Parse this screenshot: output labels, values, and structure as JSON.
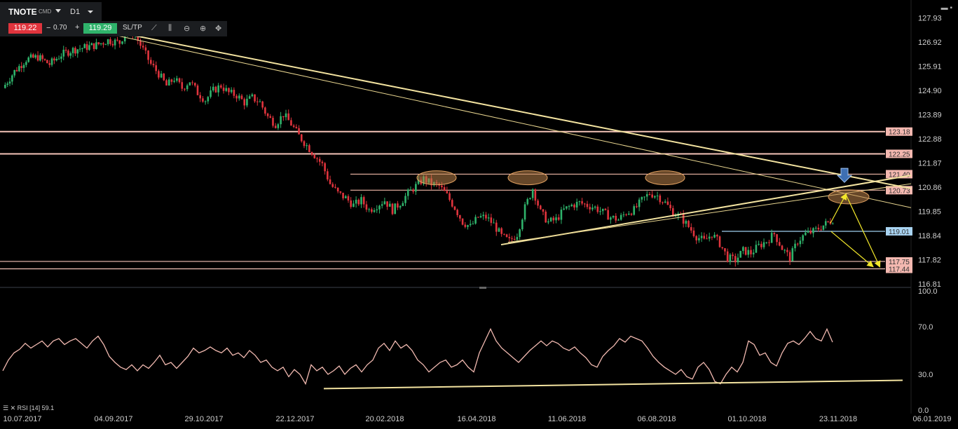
{
  "toolbar": {
    "symbol": "TNOTE",
    "instrument_type": "CMD",
    "timeframe": "D1",
    "bid": "119.22",
    "minus": "−",
    "spread": "0.70",
    "plus": "+",
    "ask": "119.29",
    "sltp": "SL/TP",
    "bid_color": "#e0343d",
    "ask_color": "#2fb36b"
  },
  "rsi_panel": {
    "label": "RSI [14] 59.1"
  },
  "chart_data": [
    {
      "type": "candlestick",
      "x_ticks": [
        "10.07.2017",
        "04.09.2017",
        "29.10.2017",
        "22.12.2017",
        "20.02.2018",
        "16.04.2018",
        "11.06.2018",
        "06.08.2018",
        "01.10.2018",
        "23.11.2018",
        "06.01.2019"
      ],
      "y_ticks": [
        127.93,
        126.92,
        125.91,
        124.9,
        123.89,
        122.88,
        121.87,
        120.86,
        119.85,
        118.84,
        117.82,
        116.81
      ],
      "ylim": [
        116.81,
        128.5
      ],
      "close_path": [
        [
          0,
          125.0
        ],
        [
          6,
          125.7
        ],
        [
          12,
          126.2
        ],
        [
          18,
          126.3
        ],
        [
          24,
          126.0
        ],
        [
          30,
          126.4
        ],
        [
          36,
          126.6
        ],
        [
          42,
          126.7
        ],
        [
          48,
          126.8
        ],
        [
          54,
          127.0
        ],
        [
          60,
          126.9
        ],
        [
          64,
          127.5
        ],
        [
          68,
          127.2
        ],
        [
          72,
          126.6
        ],
        [
          76,
          126.0
        ],
        [
          80,
          125.6
        ],
        [
          84,
          125.1
        ],
        [
          88,
          125.4
        ],
        [
          92,
          125.0
        ],
        [
          96,
          125.3
        ],
        [
          100,
          124.8
        ],
        [
          104,
          124.5
        ],
        [
          108,
          124.9
        ],
        [
          112,
          125.1
        ],
        [
          116,
          124.8
        ],
        [
          120,
          124.7
        ],
        [
          124,
          124.4
        ],
        [
          128,
          124.6
        ],
        [
          132,
          124.4
        ],
        [
          136,
          123.8
        ],
        [
          140,
          123.5
        ],
        [
          144,
          123.9
        ],
        [
          148,
          123.5
        ],
        [
          152,
          123.0
        ],
        [
          156,
          122.6
        ],
        [
          160,
          122.2
        ],
        [
          164,
          121.8
        ],
        [
          168,
          121.0
        ],
        [
          172,
          120.6
        ],
        [
          176,
          120.4
        ],
        [
          180,
          120.1
        ],
        [
          184,
          120.3
        ],
        [
          188,
          119.9
        ],
        [
          192,
          120.1
        ],
        [
          196,
          120.3
        ],
        [
          200,
          119.9
        ],
        [
          204,
          120.2
        ],
        [
          208,
          120.6
        ],
        [
          212,
          120.9
        ],
        [
          216,
          121.2
        ],
        [
          220,
          121.0
        ],
        [
          224,
          120.9
        ],
        [
          228,
          120.5
        ],
        [
          232,
          120.0
        ],
        [
          236,
          119.4
        ],
        [
          240,
          119.2
        ],
        [
          244,
          119.6
        ],
        [
          248,
          119.6
        ],
        [
          252,
          119.3
        ],
        [
          256,
          118.8
        ],
        [
          260,
          118.6
        ],
        [
          264,
          118.9
        ],
        [
          268,
          120.0
        ],
        [
          272,
          120.8
        ],
        [
          276,
          119.8
        ],
        [
          280,
          119.4
        ],
        [
          284,
          119.5
        ],
        [
          288,
          119.9
        ],
        [
          292,
          120.1
        ],
        [
          296,
          120.2
        ],
        [
          300,
          120.1
        ],
        [
          304,
          120.0
        ],
        [
          308,
          119.8
        ],
        [
          312,
          119.6
        ],
        [
          316,
          119.5
        ],
        [
          320,
          119.8
        ],
        [
          324,
          119.9
        ],
        [
          328,
          120.3
        ],
        [
          332,
          120.6
        ],
        [
          336,
          120.5
        ],
        [
          340,
          120.2
        ],
        [
          344,
          119.8
        ],
        [
          348,
          119.6
        ],
        [
          352,
          119.2
        ],
        [
          356,
          118.8
        ],
        [
          360,
          118.6
        ],
        [
          364,
          118.9
        ],
        [
          368,
          118.5
        ],
        [
          372,
          117.9
        ],
        [
          376,
          117.8
        ],
        [
          380,
          118.2
        ],
        [
          384,
          118.1
        ],
        [
          388,
          118.4
        ],
        [
          392,
          118.6
        ],
        [
          396,
          118.9
        ],
        [
          400,
          118.3
        ],
        [
          404,
          117.9
        ],
        [
          408,
          118.6
        ],
        [
          412,
          118.9
        ],
        [
          416,
          119.0
        ],
        [
          420,
          119.2
        ],
        [
          426,
          119.5
        ]
      ],
      "horizontal_levels": [
        {
          "price": "123.18",
          "value": 123.18,
          "line_color": "#f4c4b8",
          "label_color": "#f4b8b0"
        },
        {
          "price": "122.25",
          "value": 122.25,
          "line_color": "#f4c4b8",
          "label_color": "#f4b8b0"
        },
        {
          "price": "121.40",
          "value": 121.4,
          "line_color": "#f0b8a8",
          "label_color": "#f4b8b0"
        },
        {
          "price": "120.73",
          "value": 120.73,
          "line_color": "#f0b8a8",
          "label_color": "#f4b8b0"
        },
        {
          "price": "119.01",
          "value": 119.01,
          "line_color": "#9fd0f0",
          "label_color": "#a9d4f2"
        },
        {
          "price": "117.75",
          "value": 117.75,
          "line_color": "#f4c4b8",
          "label_color": "#f4b8b0"
        },
        {
          "price": "117.44",
          "value": 117.44,
          "line_color": "#f4c4b8",
          "label_color": "#f4b8b0"
        }
      ],
      "trendlines": [
        {
          "from": [
            0,
            128.3
          ],
          "to": [
            1300,
            120.8
          ],
          "color": "#f3e3a0"
        },
        {
          "from": [
            40,
            128.0
          ],
          "to": [
            1300,
            120.0
          ],
          "color": "#e9d690"
        },
        {
          "from": [
            715,
            118.45
          ],
          "to": [
            1300,
            121.35
          ],
          "color": "#f3e3a0"
        },
        {
          "from": [
            725,
            118.55
          ],
          "to": [
            1300,
            121.0
          ],
          "color": "#e9d690"
        }
      ],
      "ellipses": [
        {
          "cx": 623,
          "cy": 121.25
        },
        {
          "cx": 753,
          "cy": 121.25
        },
        {
          "cx": 949,
          "cy": 121.25
        },
        {
          "cx": 1211,
          "cy": 120.45
        }
      ],
      "colors": {
        "up": "#2fb36b",
        "down": "#e0343d",
        "ellipse": "#b9824a",
        "arrow": "#f2e72a"
      }
    },
    {
      "type": "line",
      "title": "RSI [14] 59.1",
      "y_ticks": [
        100.0,
        70.0,
        30.0,
        0.0
      ],
      "ylim": [
        0,
        100
      ],
      "values": [
        [
          0,
          33
        ],
        [
          4,
          42
        ],
        [
          8,
          48
        ],
        [
          12,
          51
        ],
        [
          16,
          56
        ],
        [
          20,
          52
        ],
        [
          24,
          55
        ],
        [
          28,
          58
        ],
        [
          32,
          53
        ],
        [
          36,
          58
        ],
        [
          40,
          60
        ],
        [
          44,
          55
        ],
        [
          48,
          58
        ],
        [
          52,
          60
        ],
        [
          56,
          56
        ],
        [
          60,
          52
        ],
        [
          64,
          58
        ],
        [
          68,
          62
        ],
        [
          72,
          55
        ],
        [
          76,
          45
        ],
        [
          80,
          40
        ],
        [
          84,
          36
        ],
        [
          88,
          34
        ],
        [
          92,
          38
        ],
        [
          96,
          33
        ],
        [
          100,
          38
        ],
        [
          104,
          35
        ],
        [
          108,
          40
        ],
        [
          112,
          46
        ],
        [
          116,
          38
        ],
        [
          120,
          40
        ],
        [
          124,
          35
        ],
        [
          128,
          40
        ],
        [
          132,
          45
        ],
        [
          136,
          52
        ],
        [
          140,
          48
        ],
        [
          144,
          50
        ],
        [
          148,
          53
        ],
        [
          152,
          50
        ],
        [
          156,
          48
        ],
        [
          160,
          52
        ],
        [
          164,
          46
        ],
        [
          168,
          48
        ],
        [
          172,
          44
        ],
        [
          176,
          50
        ],
        [
          180,
          46
        ],
        [
          184,
          40
        ],
        [
          188,
          42
        ],
        [
          192,
          36
        ],
        [
          196,
          33
        ],
        [
          200,
          36
        ],
        [
          204,
          28
        ],
        [
          208,
          34
        ],
        [
          212,
          30
        ],
        [
          216,
          22
        ],
        [
          220,
          38
        ],
        [
          224,
          33
        ],
        [
          228,
          36
        ],
        [
          232,
          30
        ],
        [
          236,
          33
        ],
        [
          240,
          37
        ],
        [
          244,
          30
        ],
        [
          248,
          35
        ],
        [
          252,
          38
        ],
        [
          256,
          32
        ],
        [
          260,
          38
        ],
        [
          264,
          42
        ],
        [
          268,
          52
        ],
        [
          272,
          56
        ],
        [
          276,
          50
        ],
        [
          280,
          58
        ],
        [
          284,
          52
        ],
        [
          288,
          55
        ],
        [
          292,
          50
        ],
        [
          296,
          42
        ],
        [
          300,
          38
        ],
        [
          304,
          32
        ],
        [
          308,
          36
        ],
        [
          312,
          40
        ],
        [
          316,
          42
        ],
        [
          320,
          36
        ],
        [
          324,
          38
        ],
        [
          328,
          42
        ],
        [
          332,
          36
        ],
        [
          336,
          32
        ],
        [
          340,
          48
        ],
        [
          344,
          58
        ],
        [
          348,
          68
        ],
        [
          352,
          58
        ],
        [
          356,
          52
        ],
        [
          360,
          48
        ],
        [
          364,
          44
        ],
        [
          368,
          40
        ],
        [
          372,
          45
        ],
        [
          376,
          50
        ],
        [
          380,
          54
        ],
        [
          384,
          58
        ],
        [
          388,
          54
        ],
        [
          392,
          58
        ],
        [
          396,
          56
        ],
        [
          400,
          52
        ],
        [
          404,
          50
        ],
        [
          408,
          53
        ],
        [
          412,
          48
        ],
        [
          416,
          44
        ],
        [
          420,
          38
        ],
        [
          424,
          36
        ],
        [
          428,
          45
        ],
        [
          432,
          50
        ],
        [
          436,
          54
        ],
        [
          440,
          60
        ],
        [
          444,
          57
        ],
        [
          448,
          62
        ],
        [
          452,
          60
        ],
        [
          456,
          58
        ],
        [
          460,
          52
        ],
        [
          464,
          45
        ],
        [
          468,
          40
        ],
        [
          472,
          36
        ],
        [
          476,
          33
        ],
        [
          480,
          30
        ],
        [
          484,
          34
        ],
        [
          488,
          28
        ],
        [
          492,
          26
        ],
        [
          496,
          36
        ],
        [
          500,
          40
        ],
        [
          504,
          34
        ],
        [
          508,
          24
        ],
        [
          512,
          22
        ],
        [
          516,
          30
        ],
        [
          520,
          36
        ],
        [
          524,
          32
        ],
        [
          528,
          40
        ],
        [
          532,
          58
        ],
        [
          536,
          55
        ],
        [
          540,
          46
        ],
        [
          544,
          48
        ],
        [
          548,
          40
        ],
        [
          552,
          37
        ],
        [
          556,
          48
        ],
        [
          560,
          56
        ],
        [
          564,
          58
        ],
        [
          568,
          55
        ],
        [
          572,
          60
        ],
        [
          576,
          66
        ],
        [
          580,
          60
        ],
        [
          584,
          58
        ],
        [
          588,
          68
        ],
        [
          592,
          57
        ]
      ],
      "trendline": {
        "from": [
          462,
          18
        ],
        "to": [
          1288,
          25
        ]
      },
      "line_color": "#f1b9b0",
      "trendline_color": "#f3e3a0"
    }
  ]
}
